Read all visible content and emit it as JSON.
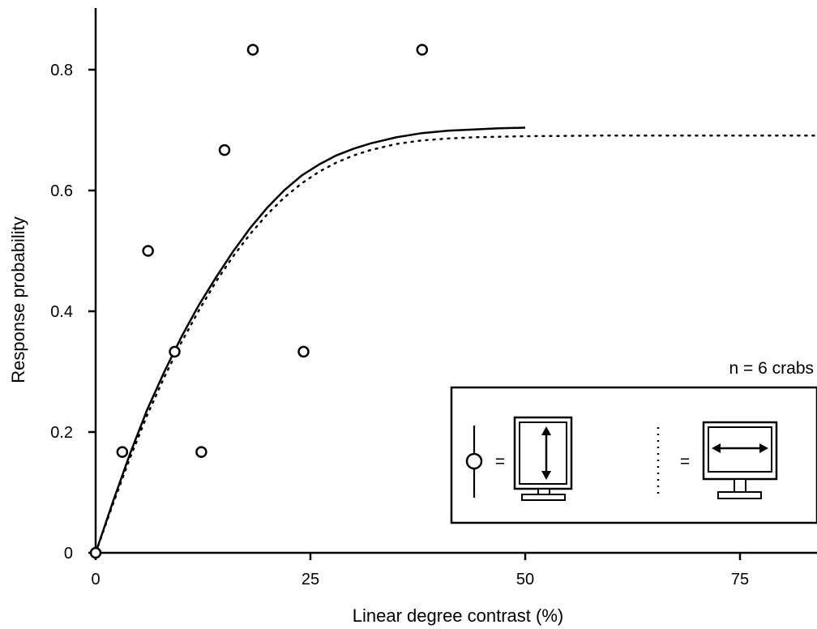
{
  "chart_data": {
    "type": "scatter",
    "xlabel": "Linear degree contrast (%)",
    "ylabel": "Response probability",
    "xlim": [
      0,
      84
    ],
    "ylim": [
      0,
      0.9
    ],
    "x_ticks": [
      0,
      25,
      50,
      75
    ],
    "y_ticks": [
      0,
      0.2,
      0.4,
      0.6,
      0.8
    ],
    "y_tick_labels": [
      "0",
      "0.2",
      "0.4",
      "0.6",
      "0.8"
    ],
    "grid": false,
    "annotation": "n = 6 crabs",
    "series": [
      {
        "style": "open-circle-markers",
        "points": [
          {
            "x": 0,
            "y": 0
          },
          {
            "x": 3.1,
            "y": 0.167
          },
          {
            "x": 6.1,
            "y": 0.5
          },
          {
            "x": 9.2,
            "y": 0.333
          },
          {
            "x": 12.3,
            "y": 0.167
          },
          {
            "x": 15.0,
            "y": 0.667
          },
          {
            "x": 18.3,
            "y": 0.833
          },
          {
            "x": 24.2,
            "y": 0.333
          },
          {
            "x": 38.0,
            "y": 0.833
          }
        ]
      },
      {
        "style": "solid-line",
        "x": [
          0,
          2,
          4,
          6,
          8,
          10,
          12,
          14,
          16,
          18,
          20,
          22,
          24,
          26,
          28,
          30,
          32,
          35,
          38,
          41,
          44,
          47,
          50
        ],
        "y": [
          0,
          0.084,
          0.164,
          0.237,
          0.3,
          0.358,
          0.41,
          0.456,
          0.499,
          0.538,
          0.572,
          0.601,
          0.625,
          0.643,
          0.658,
          0.669,
          0.678,
          0.688,
          0.695,
          0.699,
          0.701,
          0.703,
          0.704
        ]
      },
      {
        "style": "dotted-line",
        "x": [
          0,
          2,
          4,
          6,
          8,
          10,
          12,
          14,
          16,
          18,
          20,
          22,
          24,
          26,
          28,
          30,
          32,
          35,
          38,
          41,
          44,
          50,
          60,
          70,
          84
        ],
        "y": [
          0,
          0.08,
          0.157,
          0.228,
          0.291,
          0.349,
          0.401,
          0.449,
          0.491,
          0.528,
          0.561,
          0.589,
          0.612,
          0.631,
          0.646,
          0.658,
          0.667,
          0.677,
          0.683,
          0.686,
          0.688,
          0.69,
          0.691,
          0.691,
          0.691
        ]
      }
    ],
    "legend": {
      "placement": "bottom-right",
      "items": [
        {
          "marker": "open-circle-with-line",
          "symbol": "=",
          "icon": "portrait-monitor-vertical-arrow-icon"
        },
        {
          "marker": "dotted-line",
          "symbol": "=",
          "icon": "landscape-monitor-horizontal-arrow-icon"
        }
      ]
    }
  }
}
